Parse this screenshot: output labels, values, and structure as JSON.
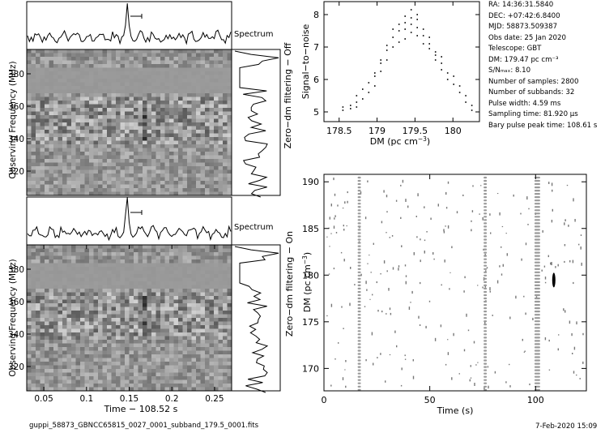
{
  "file_name": "guppi_58873_GBNCC65815_0027_0001_subband_179.5_0001.fits",
  "timestamp": "7-Feb-2020 15:09",
  "info": [
    "RA: 14:36:31.5840",
    "DEC: +07:42:6.8400",
    "MJD: 58873.509387",
    "Obs date: 25 Jan 2020",
    "Telescope: GBT",
    "DM: 179.47 pc cm⁻³",
    "S/Nₘₐₓ: 8.10",
    "Number of samples: 2800",
    "Number of subbands: 32",
    "Pulse width: 4.59 ms",
    "Sampling time: 81.920 μs",
    "Bary pulse peak time: 108.61 s"
  ],
  "labels": {
    "spectrum": "Spectrum",
    "obs_freq": "Observing Frequency (MHz)",
    "time_offset": "Time − 108.52 s",
    "zero_dm_off": "Zero−dm filtering − Off",
    "zero_dm_on": "Zero−dm filtering − On",
    "snr": "Signal−to−noise",
    "dm_axis": "DM (pc cm⁻³)",
    "dm_axis_rot": "DM (pc cm⁻³)",
    "time_s": "Time (s)"
  },
  "chart_data": [
    {
      "type": "heatmap",
      "panel": "dynamic-spectrum-top",
      "xlabel": "",
      "ylabel": "Observing Frequency (MHz)",
      "ylim": [
        305,
        395
      ],
      "yticks": [
        320,
        340,
        360,
        380
      ],
      "xlim": [
        0.03,
        0.27
      ],
      "band_top_label": "Spectrum"
    },
    {
      "type": "heatmap",
      "panel": "dynamic-spectrum-bottom",
      "xlabel": "Time − 108.52 s",
      "ylabel": "Observing Frequency (MHz)",
      "ylim": [
        305,
        395
      ],
      "yticks": [
        320,
        340,
        360,
        380
      ],
      "xlim": [
        0.03,
        0.27
      ],
      "xticks": [
        0.05,
        0.1,
        0.15,
        0.2,
        0.25
      ],
      "xticklabels": [
        "0.05",
        "0.1",
        "0.15",
        "0.2",
        "0.25"
      ]
    },
    {
      "type": "scatter",
      "panel": "snr-vs-dm",
      "xlabel": "DM (pc cm⁻³)",
      "ylabel": "Signal−to−noise",
      "xlim": [
        178.3,
        180.35
      ],
      "ylim": [
        4.7,
        8.4
      ],
      "xticks": [
        178.5,
        179,
        179.5,
        180
      ],
      "xticklabels": [
        "178.5",
        "179",
        "179.5",
        "180"
      ],
      "yticks": [
        5,
        6,
        7,
        8
      ],
      "x": [
        178.55,
        178.55,
        178.65,
        178.65,
        178.73,
        178.73,
        178.73,
        178.81,
        178.81,
        178.89,
        178.89,
        178.97,
        178.97,
        178.97,
        179.05,
        179.05,
        179.05,
        179.13,
        179.13,
        179.13,
        179.21,
        179.21,
        179.21,
        179.29,
        179.29,
        179.29,
        179.37,
        179.37,
        179.37,
        179.37,
        179.45,
        179.45,
        179.45,
        179.45,
        179.53,
        179.53,
        179.53,
        179.53,
        179.61,
        179.61,
        179.61,
        179.69,
        179.69,
        179.69,
        179.77,
        179.77,
        179.77,
        179.85,
        179.85,
        179.85,
        179.93,
        179.93,
        180.01,
        180.01,
        180.09,
        180.09,
        180.17,
        180.17,
        180.25,
        180.25
      ],
      "y": [
        5.05,
        5.15,
        5.1,
        5.2,
        5.15,
        5.3,
        5.5,
        5.4,
        5.7,
        5.6,
        5.9,
        5.8,
        6.1,
        6.2,
        6.25,
        6.5,
        6.6,
        6.6,
        6.9,
        7.05,
        7.0,
        7.3,
        7.55,
        7.15,
        7.5,
        7.7,
        7.25,
        7.55,
        7.75,
        7.95,
        7.45,
        7.7,
        7.9,
        8.15,
        7.35,
        7.6,
        7.85,
        8.0,
        7.1,
        7.35,
        7.55,
        6.95,
        7.1,
        7.3,
        6.6,
        6.75,
        6.85,
        6.3,
        6.5,
        6.7,
        6.0,
        6.2,
        5.85,
        6.1,
        5.6,
        5.8,
        5.3,
        5.5,
        5.05,
        5.2
      ]
    },
    {
      "type": "scatter",
      "panel": "dm-vs-time",
      "xlabel": "Time (s)",
      "ylabel": "DM (pc cm⁻³)",
      "xlim": [
        0,
        124
      ],
      "ylim": [
        167.6,
        190.8
      ],
      "xticks": [
        0,
        50,
        100
      ],
      "xticklabels": [
        "0",
        "50",
        "100"
      ],
      "yticks": [
        170,
        175,
        180,
        185,
        190
      ],
      "vertical_streaks_s": [
        16.7,
        76.2,
        100.8
      ],
      "candidate": {
        "time": 108.6,
        "dm": 179.47
      }
    }
  ]
}
